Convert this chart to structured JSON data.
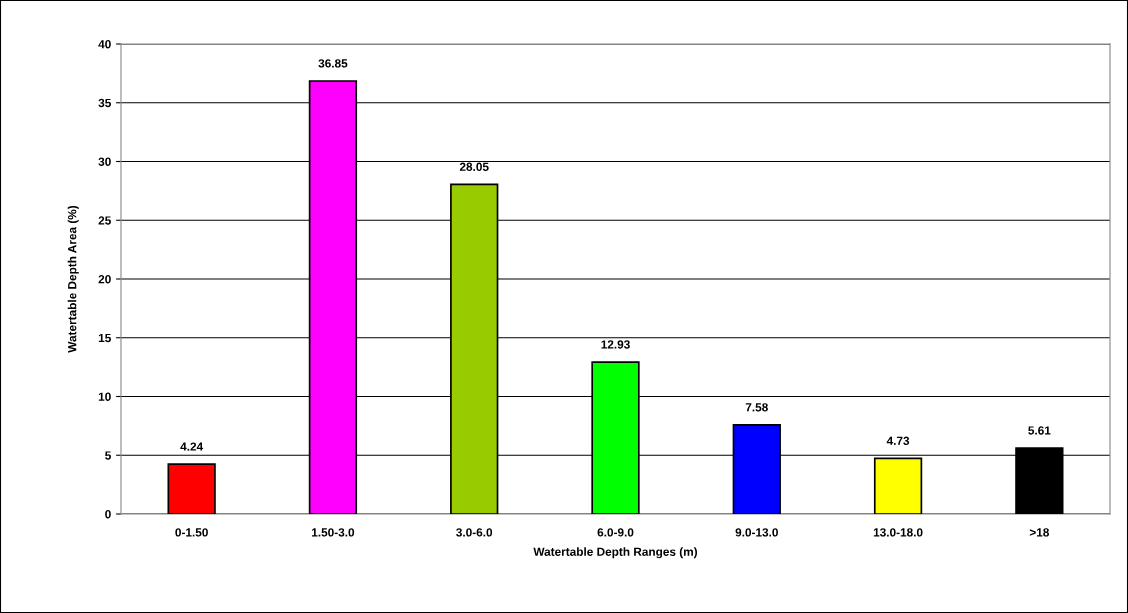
{
  "chart_data": {
    "type": "bar",
    "xlabel": "Watertable Depth Ranges (m)",
    "ylabel": "Watertable Depth Area (%)",
    "categories": [
      "0-1.50",
      "1.50-3.0",
      "3.0-6.0",
      "6.0-9.0",
      "9.0-13.0",
      "13.0-18.0",
      ">18"
    ],
    "values": [
      4.24,
      36.85,
      28.05,
      12.93,
      7.58,
      4.73,
      5.61
    ],
    "colors": [
      "#ff0000",
      "#ff00ff",
      "#99cc00",
      "#00ff00",
      "#0000ff",
      "#ffff00",
      "#000000"
    ],
    "ylim": [
      0,
      40
    ],
    "yticks": [
      0,
      5,
      10,
      15,
      20,
      25,
      30,
      35,
      40
    ],
    "grid": "y",
    "data_labels": true
  }
}
